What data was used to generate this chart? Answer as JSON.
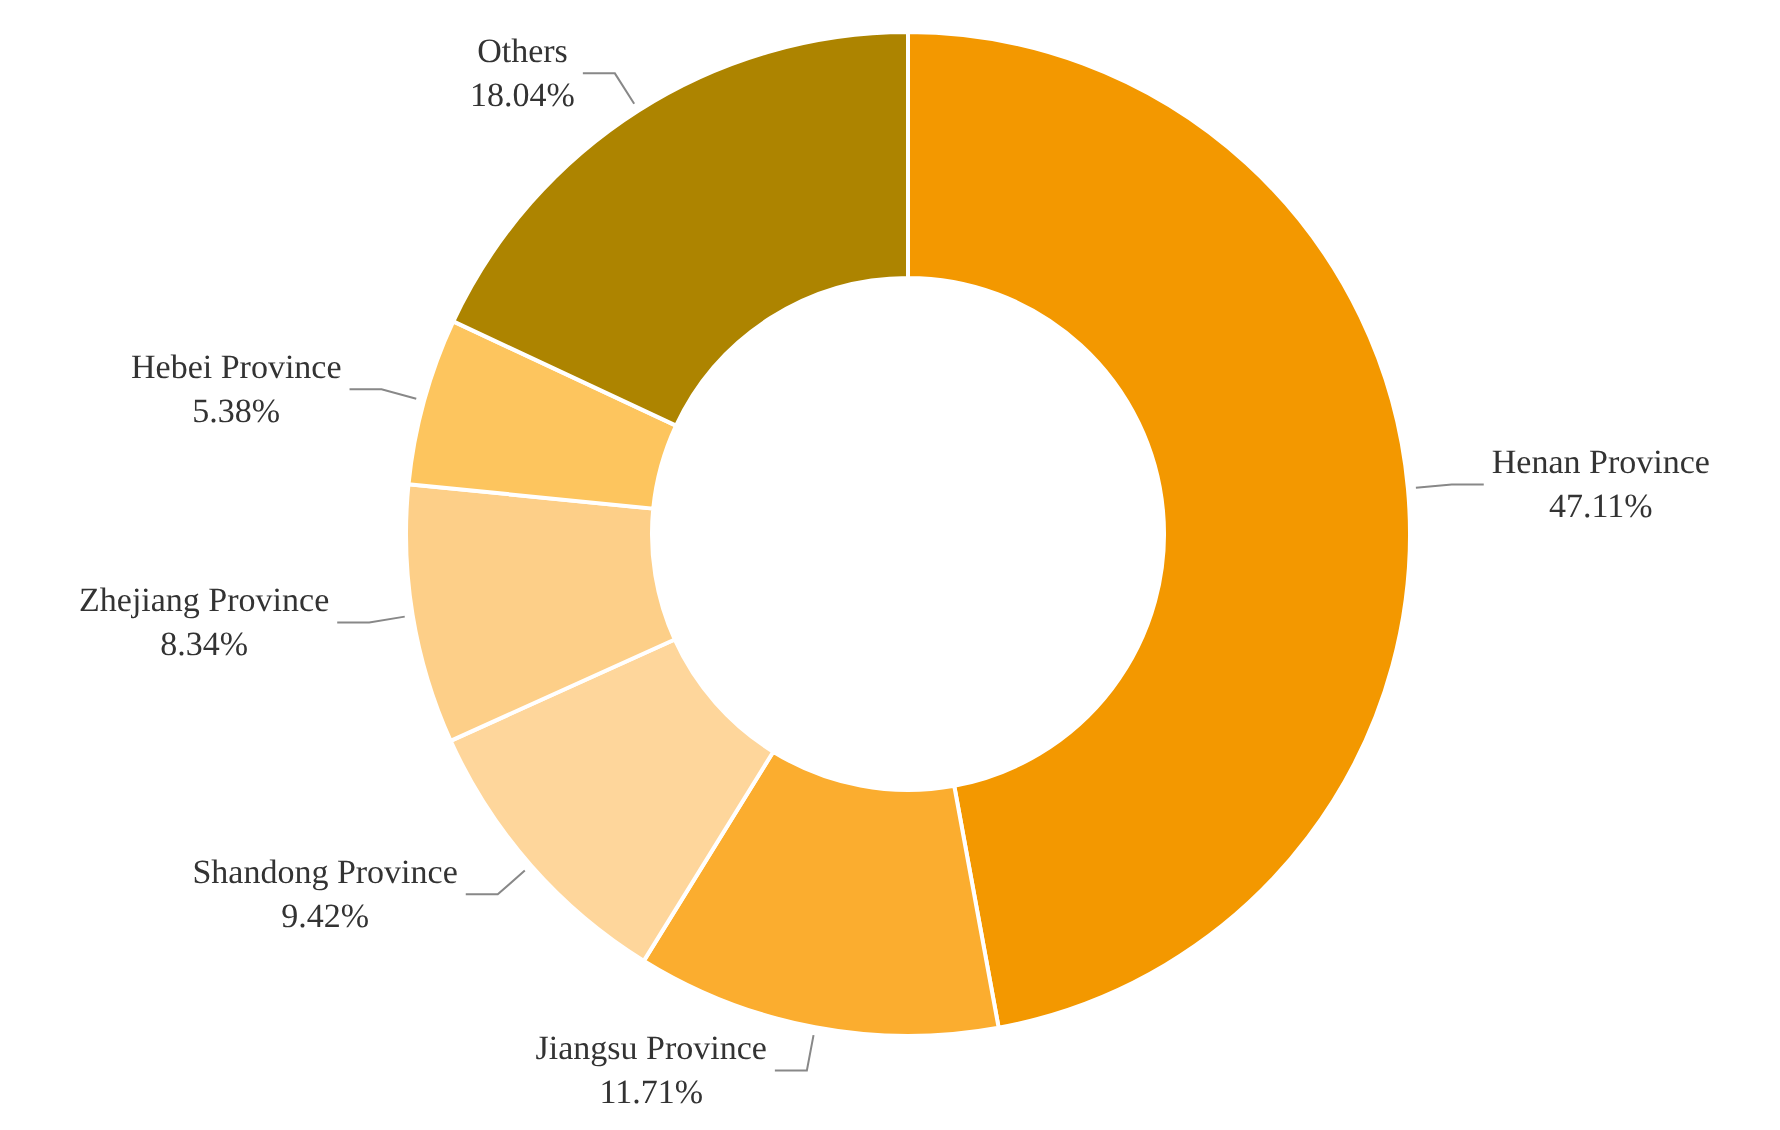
{
  "chart_data": {
    "type": "donut",
    "categories": [
      "Henan Province",
      "Jiangsu Province",
      "Shandong Province",
      "Zhejiang Province",
      "Hebei Province",
      "Others"
    ],
    "values": [
      47.11,
      11.71,
      9.42,
      8.34,
      5.38,
      18.04
    ],
    "value_labels": [
      "47.11%",
      "11.71%",
      "9.42%",
      "8.34%",
      "5.38%",
      "18.04%"
    ],
    "colors": [
      "#f39800",
      "#fbad2f",
      "#fed69b",
      "#fdcf88",
      "#fdc55e",
      "#ad8400"
    ],
    "legend": false
  }
}
